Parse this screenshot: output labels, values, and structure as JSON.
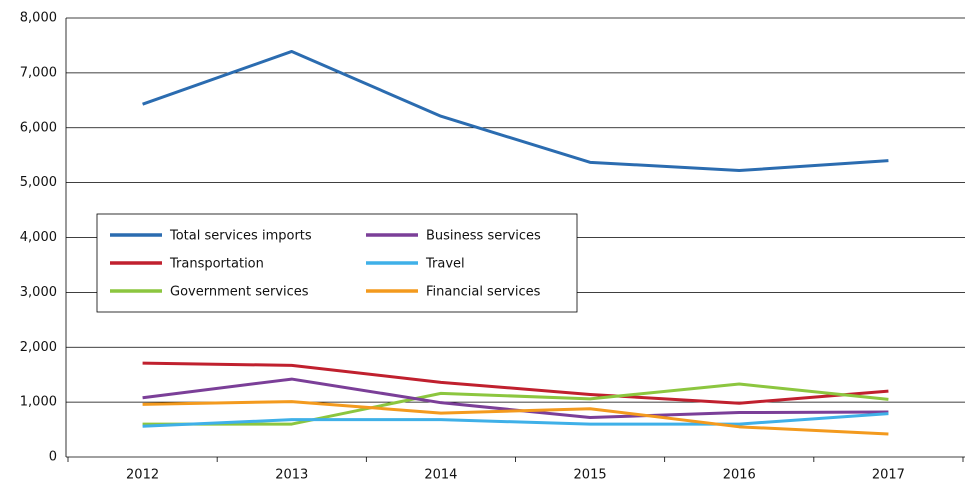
{
  "chart_data": {
    "type": "line",
    "categories": [
      "2012",
      "2013",
      "2014",
      "2015",
      "2016",
      "2017"
    ],
    "series": [
      {
        "name": "Total services imports",
        "color": "#2b6cb0",
        "values": [
          6430,
          7390,
          6210,
          5370,
          5220,
          5400
        ]
      },
      {
        "name": "Transportation",
        "color": "#c0202e",
        "values": [
          1710,
          1670,
          1360,
          1140,
          980,
          1200
        ]
      },
      {
        "name": "Government services",
        "color": "#8cc63f",
        "values": [
          600,
          600,
          1160,
          1060,
          1330,
          1050
        ]
      },
      {
        "name": "Business services",
        "color": "#7b3f98",
        "values": [
          1080,
          1420,
          990,
          720,
          810,
          820
        ]
      },
      {
        "name": "Travel",
        "color": "#3fb0e8",
        "values": [
          560,
          680,
          680,
          600,
          600,
          790
        ]
      },
      {
        "name": "Financial services",
        "color": "#f39a1e",
        "values": [
          960,
          1010,
          800,
          880,
          550,
          420
        ]
      }
    ],
    "ylim": [
      0,
      8000
    ],
    "yticks": [
      0,
      {
        "value": 1000,
        "label": "1,000"
      },
      {
        "value": 2000,
        "label": "2,000"
      },
      {
        "value": 3000,
        "label": "3,000"
      },
      {
        "value": 4000,
        "label": "4,000"
      },
      {
        "value": 5000,
        "label": "5,000"
      },
      {
        "value": 6000,
        "label": "6,000"
      },
      {
        "value": 7000,
        "label": "7,000"
      },
      {
        "value": 8000,
        "label": "8,000"
      }
    ],
    "grid": true
  }
}
